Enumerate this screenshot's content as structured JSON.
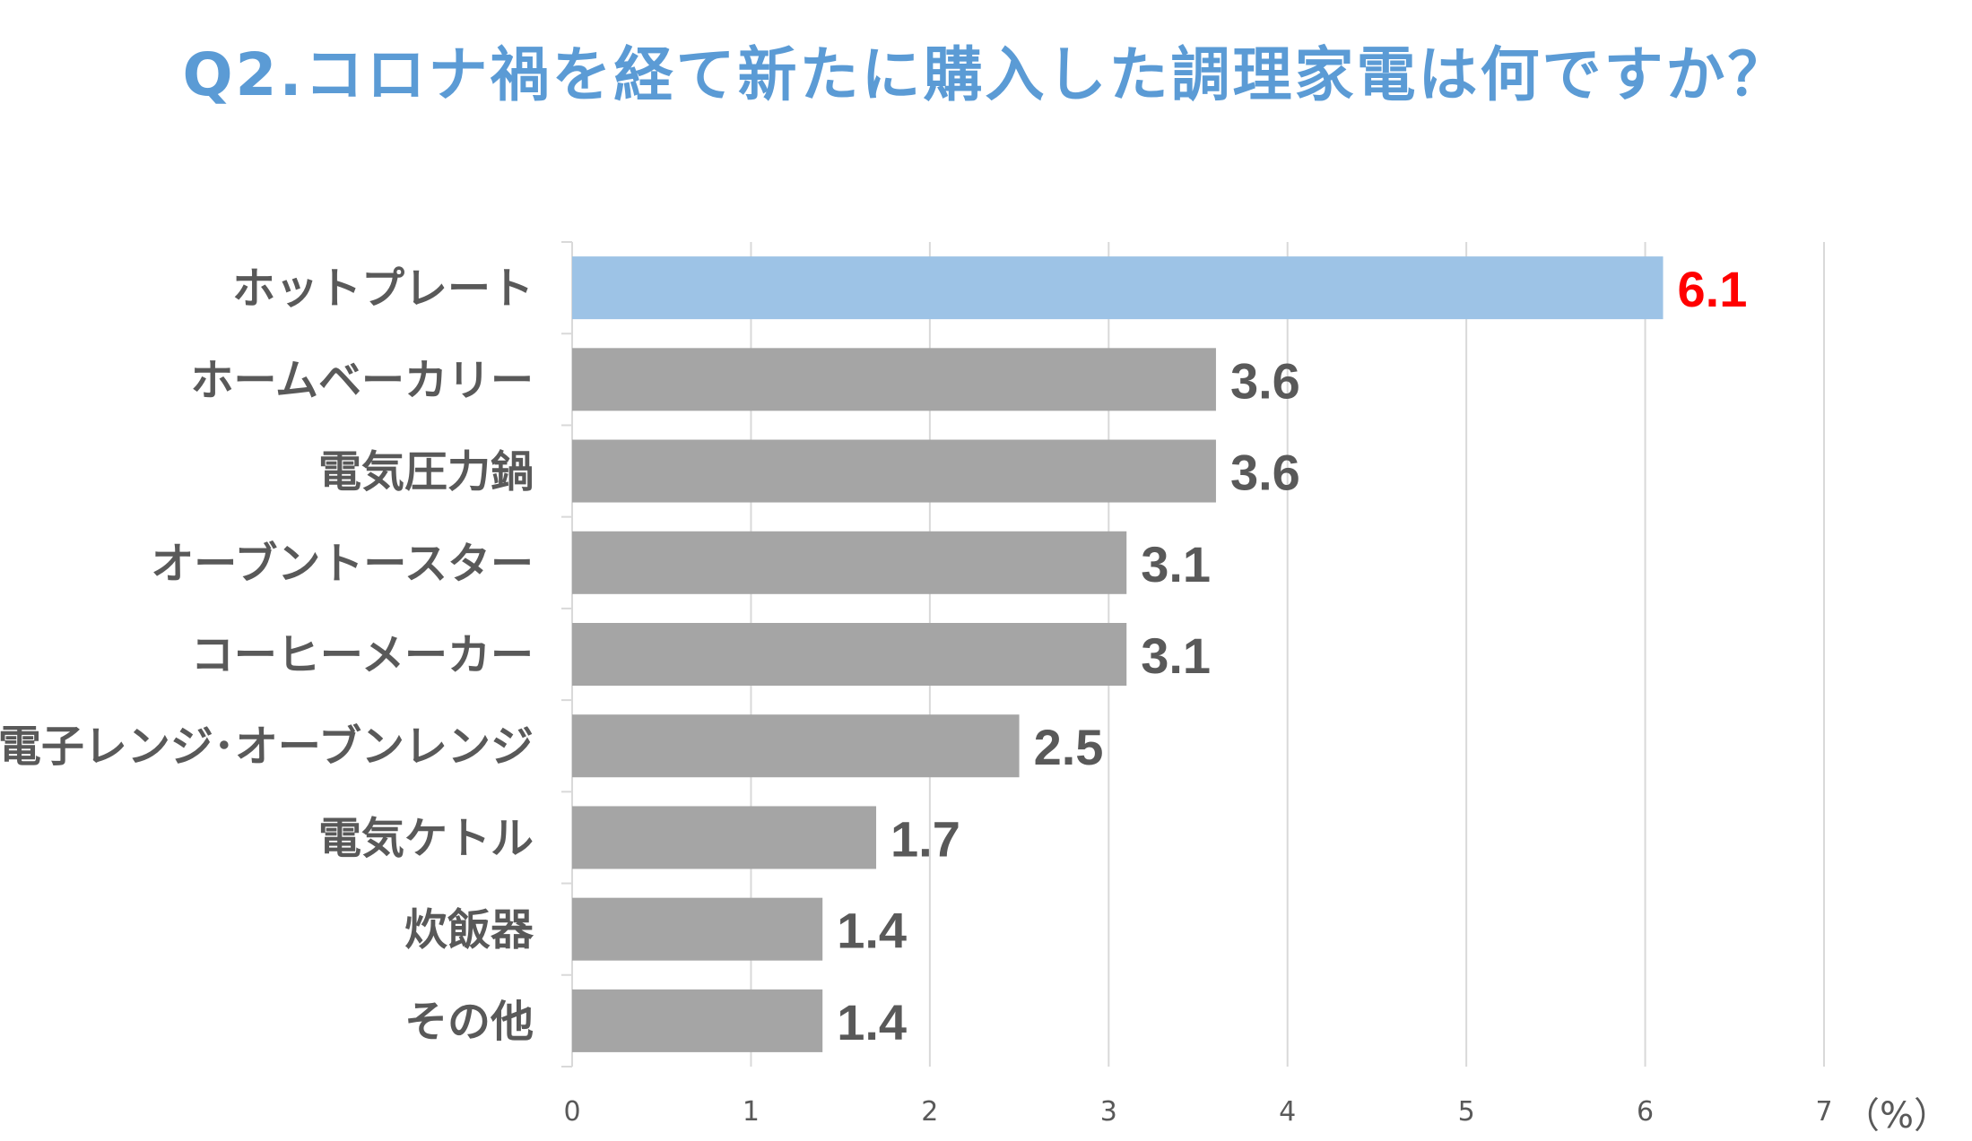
{
  "chart_data": {
    "type": "bar",
    "orientation": "horizontal",
    "title": "Q2.コロナ禍を経て新たに購入した調理家電は何ですか？",
    "categories": [
      "ホットプレート",
      "ホームベーカリー",
      "電気圧力鍋",
      "オーブントースター",
      "コーヒーメーカー",
      "電子レンジ･オーブンレンジ",
      "電気ケトル",
      "炊飯器",
      "その他"
    ],
    "values": [
      6.1,
      3.6,
      3.6,
      3.1,
      3.1,
      2.5,
      1.7,
      1.4,
      1.4
    ],
    "value_labels": [
      "6.1",
      "3.6",
      "3.6",
      "3.1",
      "3.1",
      "2.5",
      "1.7",
      "1.4",
      "1.4"
    ],
    "highlight_index": 0,
    "xlim": [
      0,
      7
    ],
    "xticks": [
      "0",
      "1",
      "2",
      "3",
      "4",
      "5",
      "6",
      "7"
    ],
    "unit": "（%）",
    "grid": true,
    "colors": {
      "highlight_bar": "#9dc3e6",
      "bar": "#a5a5a5",
      "highlight_label": "#ff0000",
      "label": "#595959",
      "grid": "#d9d9d9",
      "title": "#5b9bd5"
    }
  }
}
